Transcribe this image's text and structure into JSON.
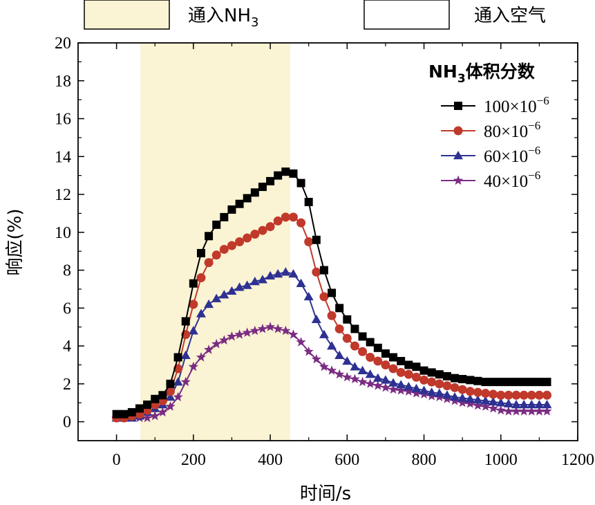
{
  "chart_data": {
    "type": "line",
    "title": "",
    "xlabel": "时间/s",
    "ylabel": "响应(%)",
    "xlim": [
      -100,
      1200
    ],
    "ylim": [
      -1,
      20
    ],
    "xticks": [
      0,
      200,
      400,
      600,
      800,
      1000,
      1200
    ],
    "yticks": [
      0,
      2,
      4,
      6,
      8,
      10,
      12,
      14,
      16,
      18,
      20
    ],
    "gas_phases": [
      {
        "name": "ammonia-phase",
        "label_prefix": "通入NH",
        "label_sub": "3",
        "x_range": [
          62,
          452
        ],
        "color": "#faf3d4"
      },
      {
        "name": "air-phase",
        "label": "通入空气",
        "color": "#ffffff"
      }
    ],
    "legend_title_prefix": "NH",
    "legend_title_sub": "3",
    "legend_title_suffix": "体积分数",
    "series": [
      {
        "name": "100×10-6",
        "label_main": "100×10",
        "label_exp": "−6",
        "color": "#000000",
        "marker": "square",
        "x": [
          0,
          20,
          40,
          60,
          80,
          100,
          120,
          140,
          160,
          180,
          200,
          220,
          240,
          260,
          280,
          300,
          320,
          340,
          360,
          380,
          400,
          420,
          440,
          460,
          480,
          500,
          520,
          540,
          560,
          580,
          600,
          620,
          640,
          660,
          680,
          700,
          720,
          740,
          760,
          780,
          800,
          820,
          840,
          860,
          880,
          900,
          920,
          940,
          960,
          980,
          1000,
          1020,
          1040,
          1060,
          1080,
          1100,
          1120
        ],
        "y": [
          0.4,
          0.4,
          0.5,
          0.7,
          0.9,
          1.2,
          1.4,
          2.0,
          3.4,
          5.3,
          7.3,
          8.9,
          9.8,
          10.4,
          10.8,
          11.2,
          11.5,
          11.8,
          12.1,
          12.4,
          12.7,
          13.0,
          13.2,
          13.1,
          12.6,
          11.6,
          9.6,
          8.0,
          6.8,
          6.0,
          5.4,
          4.9,
          4.5,
          4.2,
          3.9,
          3.6,
          3.4,
          3.2,
          3.0,
          2.9,
          2.7,
          2.6,
          2.5,
          2.4,
          2.3,
          2.25,
          2.2,
          2.15,
          2.1,
          2.1,
          2.1,
          2.1,
          2.1,
          2.1,
          2.1,
          2.1,
          2.1
        ]
      },
      {
        "name": "80×10-6",
        "label_main": "80×10",
        "label_exp": "−6",
        "color": "#c0392b",
        "marker": "circle",
        "x": [
          0,
          20,
          40,
          60,
          80,
          100,
          120,
          140,
          160,
          180,
          200,
          220,
          240,
          260,
          280,
          300,
          320,
          340,
          360,
          380,
          400,
          420,
          440,
          460,
          480,
          500,
          520,
          540,
          560,
          580,
          600,
          620,
          640,
          660,
          680,
          700,
          720,
          740,
          760,
          780,
          800,
          820,
          840,
          860,
          880,
          900,
          920,
          940,
          960,
          980,
          1000,
          1020,
          1040,
          1060,
          1080,
          1100,
          1120
        ],
        "y": [
          0.2,
          0.2,
          0.3,
          0.4,
          0.6,
          0.9,
          1.1,
          1.6,
          2.8,
          4.6,
          6.2,
          7.6,
          8.4,
          8.8,
          9.1,
          9.3,
          9.5,
          9.7,
          9.9,
          10.1,
          10.3,
          10.6,
          10.8,
          10.8,
          10.5,
          9.5,
          7.9,
          6.6,
          5.6,
          4.9,
          4.4,
          4.0,
          3.7,
          3.4,
          3.2,
          3.0,
          2.8,
          2.6,
          2.5,
          2.35,
          2.2,
          2.1,
          2.0,
          1.9,
          1.8,
          1.7,
          1.6,
          1.55,
          1.5,
          1.45,
          1.4,
          1.4,
          1.4,
          1.4,
          1.4,
          1.4,
          1.4
        ]
      },
      {
        "name": "60×10-6",
        "label_main": "60×10",
        "label_exp": "−6",
        "color": "#2e3192",
        "marker": "triangle",
        "x": [
          0,
          20,
          40,
          60,
          80,
          100,
          120,
          140,
          160,
          180,
          200,
          220,
          240,
          260,
          280,
          300,
          320,
          340,
          360,
          380,
          400,
          420,
          440,
          460,
          480,
          500,
          520,
          540,
          560,
          580,
          600,
          620,
          640,
          660,
          680,
          700,
          720,
          740,
          760,
          780,
          800,
          820,
          840,
          860,
          880,
          900,
          920,
          940,
          960,
          980,
          1000,
          1020,
          1040,
          1060,
          1080,
          1100,
          1120
        ],
        "y": [
          0.2,
          0.2,
          0.2,
          0.3,
          0.5,
          0.7,
          0.9,
          1.3,
          2.1,
          3.5,
          4.8,
          5.7,
          6.2,
          6.5,
          6.7,
          6.9,
          7.1,
          7.2,
          7.4,
          7.5,
          7.7,
          7.8,
          7.9,
          7.8,
          7.3,
          6.6,
          5.4,
          4.6,
          4.0,
          3.5,
          3.2,
          2.9,
          2.7,
          2.5,
          2.3,
          2.2,
          2.05,
          1.95,
          1.85,
          1.75,
          1.65,
          1.55,
          1.5,
          1.4,
          1.3,
          1.25,
          1.2,
          1.15,
          1.1,
          1.05,
          1.0,
          0.95,
          0.9,
          0.9,
          0.9,
          0.9,
          0.9
        ]
      },
      {
        "name": "40×10-6",
        "label_main": "40×10",
        "label_exp": "−6",
        "color": "#7b2c83",
        "marker": "star",
        "x": [
          0,
          20,
          40,
          60,
          80,
          100,
          120,
          140,
          160,
          180,
          200,
          220,
          240,
          260,
          280,
          300,
          320,
          340,
          360,
          380,
          400,
          420,
          440,
          460,
          480,
          500,
          520,
          540,
          560,
          580,
          600,
          620,
          640,
          660,
          680,
          700,
          720,
          740,
          760,
          780,
          800,
          820,
          840,
          860,
          880,
          900,
          920,
          940,
          960,
          980,
          1000,
          1020,
          1040,
          1060,
          1080,
          1100,
          1120
        ],
        "y": [
          0.2,
          0.2,
          0.2,
          0.2,
          0.2,
          0.3,
          0.5,
          0.8,
          1.3,
          2.1,
          2.9,
          3.4,
          3.8,
          4.1,
          4.3,
          4.5,
          4.6,
          4.7,
          4.8,
          4.9,
          5.0,
          4.9,
          4.8,
          4.6,
          4.2,
          3.7,
          3.3,
          2.9,
          2.7,
          2.5,
          2.35,
          2.25,
          2.1,
          2.0,
          1.9,
          1.8,
          1.7,
          1.65,
          1.6,
          1.5,
          1.45,
          1.35,
          1.3,
          1.2,
          1.1,
          1.0,
          0.95,
          0.85,
          0.8,
          0.7,
          0.6,
          0.55,
          0.55,
          0.55,
          0.55,
          0.55,
          0.55
        ]
      }
    ]
  }
}
